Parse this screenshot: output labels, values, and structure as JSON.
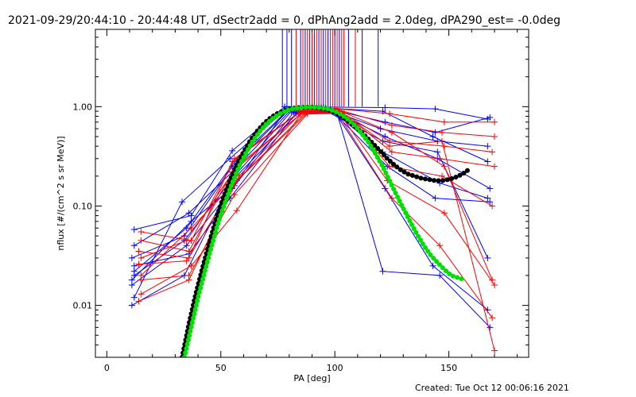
{
  "title": "2021-09-29/20:44:10 - 20:44:48 UT, dSectr2add = 0, dPhAng2add = 2.0deg, dPA290_est= -0.0deg",
  "created": "Created: Tue Oct 12 00:06:16 2021",
  "chart_data": {
    "type": "line",
    "xlabel": "PA [deg]",
    "ylabel": "nflux [#/(cm^2 s sr MeV)]",
    "xlim": [
      -5,
      185
    ],
    "ylim": [
      0.003,
      6.0
    ],
    "yscale": "log",
    "xticks": [
      0,
      50,
      100,
      150
    ],
    "xtick_labels": [
      "0",
      "50",
      "100",
      "150"
    ],
    "yticks": [
      0.01,
      0.1,
      1.0
    ],
    "ytick_labels": [
      "0.01",
      "0.10",
      "1.00"
    ],
    "colors": {
      "blue": "#0000ff",
      "red": "#ff0000",
      "black": "#000000",
      "green": "#00e000"
    },
    "series": [
      {
        "color": "blue",
        "x": [
          12,
          37,
          55,
          78,
          95,
          122,
          144,
          167
        ],
        "y": [
          0.058,
          0.08,
          0.36,
          1.0,
          0.99,
          0.98,
          0.95,
          0.75
        ]
      },
      {
        "color": "blue",
        "x": [
          12,
          33,
          54,
          79,
          96,
          121,
          143,
          167
        ],
        "y": [
          0.012,
          0.11,
          0.3,
          0.96,
          0.97,
          0.9,
          0.5,
          0.28
        ]
      },
      {
        "color": "blue",
        "x": [
          11,
          34,
          55,
          80,
          97,
          122,
          145,
          168
        ],
        "y": [
          0.03,
          0.05,
          0.25,
          0.93,
          0.96,
          0.5,
          0.3,
          0.15
        ]
      },
      {
        "color": "blue",
        "x": [
          12,
          34,
          56,
          81,
          98,
          121,
          146,
          167
        ],
        "y": [
          0.02,
          0.045,
          0.2,
          0.9,
          0.94,
          0.35,
          0.17,
          0.12
        ]
      },
      {
        "color": "blue",
        "x": [
          11,
          35,
          55,
          82,
          99,
          123,
          144,
          168
        ],
        "y": [
          0.016,
          0.04,
          0.15,
          0.88,
          0.9,
          0.25,
          0.12,
          0.11
        ]
      },
      {
        "color": "blue",
        "x": [
          12,
          36,
          54,
          83,
          100,
          122,
          143,
          167
        ],
        "y": [
          0.025,
          0.033,
          0.12,
          0.86,
          0.88,
          0.15,
          0.025,
          0.009
        ]
      },
      {
        "color": "blue",
        "x": [
          11,
          34,
          55,
          84,
          101,
          121,
          146,
          168
        ],
        "y": [
          0.01,
          0.02,
          0.18,
          0.88,
          0.85,
          0.022,
          0.02,
          0.006
        ]
      },
      {
        "color": "blue",
        "x": [
          12,
          35,
          56,
          80,
          95,
          120,
          145,
          167
        ],
        "y": [
          0.022,
          0.06,
          0.28,
          0.95,
          0.98,
          0.6,
          0.45,
          0.4
        ]
      },
      {
        "color": "blue",
        "x": [
          12,
          36,
          55,
          81,
          94,
          122,
          144,
          168
        ],
        "y": [
          0.04,
          0.085,
          0.22,
          0.94,
          0.99,
          0.7,
          0.55,
          0.78
        ]
      },
      {
        "color": "blue",
        "x": [
          11,
          37,
          56,
          79,
          93,
          121,
          145,
          167
        ],
        "y": [
          0.018,
          0.07,
          0.16,
          0.97,
          0.99,
          0.45,
          0.35,
          0.03
        ]
      },
      {
        "color": "red",
        "x": [
          15,
          37,
          56,
          85,
          100,
          124,
          148,
          170
        ],
        "y": [
          0.055,
          0.045,
          0.3,
          0.9,
          0.96,
          0.85,
          0.7,
          0.7
        ]
      },
      {
        "color": "red",
        "x": [
          15,
          36,
          55,
          86,
          101,
          125,
          147,
          170
        ],
        "y": [
          0.045,
          0.035,
          0.22,
          0.88,
          0.94,
          0.65,
          0.55,
          0.5
        ]
      },
      {
        "color": "red",
        "x": [
          14,
          35,
          57,
          87,
          102,
          124,
          148,
          169
        ],
        "y": [
          0.026,
          0.028,
          0.18,
          0.86,
          0.9,
          0.45,
          0.4,
          0.35
        ]
      },
      {
        "color": "red",
        "x": [
          15,
          36,
          56,
          88,
          103,
          125,
          146,
          170
        ],
        "y": [
          0.018,
          0.02,
          0.13,
          0.85,
          0.88,
          0.35,
          0.3,
          0.25
        ]
      },
      {
        "color": "red",
        "x": [
          15,
          37,
          57,
          85,
          104,
          124,
          147,
          169
        ],
        "y": [
          0.013,
          0.025,
          0.09,
          0.84,
          0.86,
          0.25,
          0.2,
          0.1
        ]
      },
      {
        "color": "red",
        "x": [
          14,
          36,
          58,
          86,
          101,
          123,
          148,
          170
        ],
        "y": [
          0.011,
          0.018,
          0.2,
          0.9,
          0.92,
          0.18,
          0.085,
          0.016
        ]
      },
      {
        "color": "red",
        "x": [
          15,
          35,
          57,
          87,
          100,
          125,
          146,
          169
        ],
        "y": [
          0.03,
          0.045,
          0.25,
          0.92,
          0.94,
          0.12,
          0.04,
          0.0075
        ]
      },
      {
        "color": "red",
        "x": [
          15,
          37,
          56,
          88,
          102,
          124,
          147,
          170
        ],
        "y": [
          0.02,
          0.06,
          0.17,
          0.87,
          0.9,
          0.4,
          0.45,
          0.0035
        ]
      },
      {
        "color": "red",
        "x": [
          14,
          36,
          55,
          85,
          103,
          125,
          148,
          169
        ],
        "y": [
          0.035,
          0.03,
          0.28,
          0.89,
          0.89,
          0.55,
          0.25,
          0.018
        ]
      }
    ],
    "fits": [
      {
        "color": "black",
        "x": [
          33,
          36,
          39,
          42,
          45,
          48,
          51,
          54,
          57,
          60,
          63,
          66,
          69,
          72,
          75,
          78,
          81,
          84,
          87,
          90,
          93,
          96,
          99,
          102,
          105,
          108,
          111,
          114,
          117,
          120,
          123,
          126,
          129,
          132,
          135,
          138,
          141,
          144,
          147,
          150,
          153,
          156,
          159
        ],
        "y": [
          0.003,
          0.0065,
          0.013,
          0.024,
          0.043,
          0.075,
          0.12,
          0.18,
          0.26,
          0.35,
          0.46,
          0.57,
          0.68,
          0.78,
          0.86,
          0.92,
          0.96,
          0.98,
          0.985,
          0.99,
          0.975,
          0.95,
          0.9,
          0.83,
          0.75,
          0.66,
          0.57,
          0.49,
          0.42,
          0.355,
          0.3,
          0.26,
          0.23,
          0.21,
          0.2,
          0.19,
          0.185,
          0.18,
          0.18,
          0.185,
          0.195,
          0.21,
          0.235
        ]
      },
      {
        "color": "green",
        "x": [
          34,
          37,
          40,
          43,
          46,
          49,
          52,
          55,
          58,
          61,
          64,
          67,
          70,
          73,
          76,
          79,
          82,
          85,
          88,
          91,
          94,
          97,
          100,
          103,
          106,
          109,
          112,
          115,
          118,
          121,
          124,
          127,
          130,
          133,
          136,
          139,
          142,
          145,
          148,
          151,
          154,
          157
        ],
        "y": [
          0.003,
          0.006,
          0.012,
          0.022,
          0.04,
          0.07,
          0.11,
          0.17,
          0.25,
          0.34,
          0.45,
          0.56,
          0.67,
          0.77,
          0.85,
          0.92,
          0.96,
          0.98,
          0.99,
          0.99,
          0.975,
          0.95,
          0.9,
          0.83,
          0.74,
          0.64,
          0.53,
          0.43,
          0.33,
          0.25,
          0.18,
          0.13,
          0.095,
          0.07,
          0.052,
          0.04,
          0.032,
          0.027,
          0.023,
          0.02,
          0.019,
          0.018
        ]
      }
    ],
    "vlines": {
      "x": [
        77,
        79,
        81,
        83,
        85,
        86,
        87,
        88,
        89,
        90,
        91,
        92,
        93,
        94,
        95,
        96,
        97,
        98,
        99,
        100,
        101,
        102,
        103,
        104,
        106,
        109,
        112,
        119
      ],
      "colors": [
        "blue",
        "blue",
        "blue",
        "red",
        "blue",
        "red",
        "blue",
        "red",
        "blue",
        "red",
        "blue",
        "red",
        "blue",
        "red",
        "blue",
        "red",
        "blue",
        "red",
        "red",
        "blue",
        "red",
        "blue",
        "red",
        "red",
        "blue",
        "red",
        "blue",
        "blue"
      ],
      "y_from": 1.0,
      "y_to": 6.0
    }
  }
}
